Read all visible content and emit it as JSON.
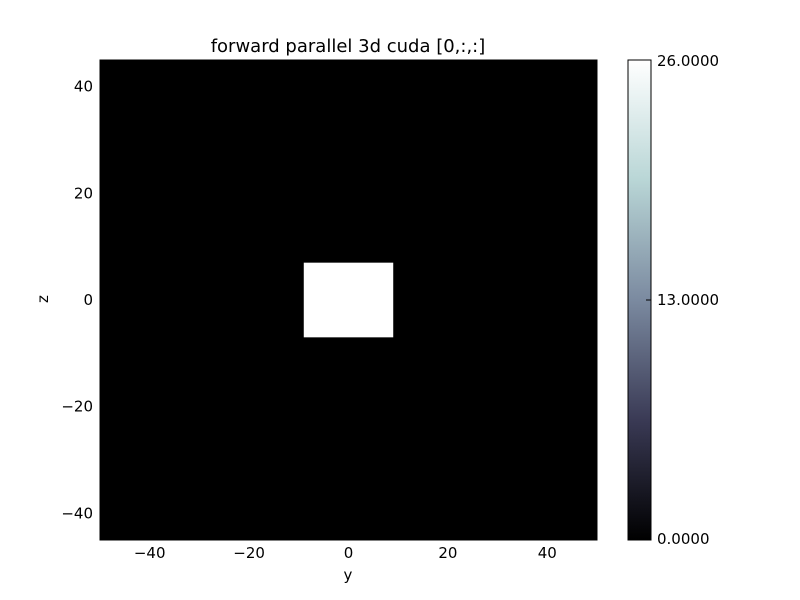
{
  "chart_data": {
    "type": "heatmap",
    "title": "forward parallel 3d cuda [0,:,:]",
    "xlabel": "y",
    "ylabel": "z",
    "xlim": [
      -50,
      50
    ],
    "ylim": [
      -45,
      45
    ],
    "xticks": [
      -40,
      -20,
      0,
      20,
      40
    ],
    "yticks": [
      -40,
      -20,
      0,
      20,
      40
    ],
    "background_value": 0,
    "regions": [
      {
        "x": [
          -9,
          9
        ],
        "y": [
          -7,
          7
        ],
        "value": 26
      }
    ],
    "colorbar": {
      "min": 0,
      "max": 26,
      "ticks": [
        "0.0000",
        "13.0000",
        "26.0000"
      ],
      "tick_values": [
        0,
        13,
        26
      ],
      "colormap": "bone",
      "stops": [
        "#000000",
        "#3a3a55",
        "#7b8aa0",
        "#b9d6d6",
        "#ffffff"
      ]
    }
  }
}
